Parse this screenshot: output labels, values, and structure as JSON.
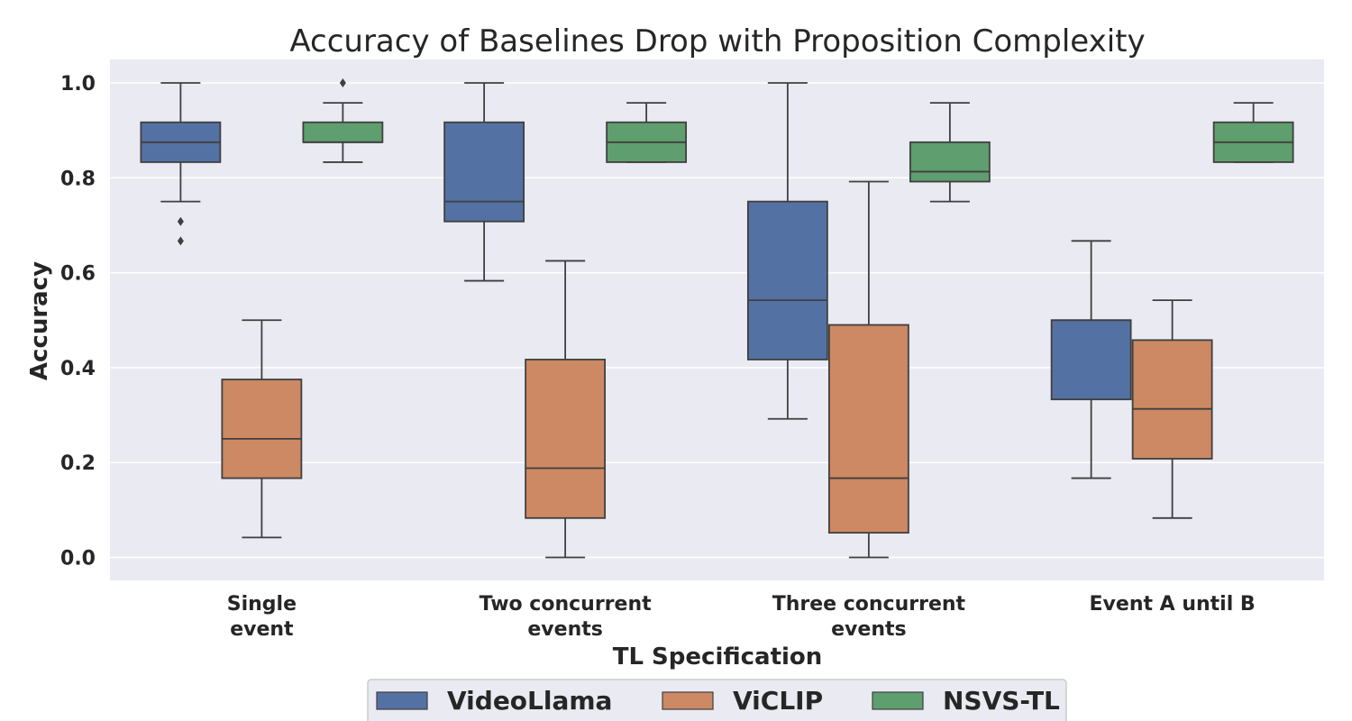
{
  "chart_data": {
    "type": "box",
    "title": "Accuracy of Baselines Drop with Proposition Complexity",
    "xlabel": "TL Specification",
    "ylabel": "Accuracy",
    "ylim": [
      -0.045,
      1.05
    ],
    "yticks": [
      "0.0",
      "0.2",
      "0.4",
      "0.6",
      "0.8",
      "1.0"
    ],
    "grid": true,
    "legend_position": "bottom-center",
    "categories": [
      {
        "lines": [
          "Single",
          "event"
        ]
      },
      {
        "lines": [
          "Two concurrent",
          "events"
        ]
      },
      {
        "lines": [
          "Three concurrent",
          "events"
        ]
      },
      {
        "lines": [
          "Event A until B"
        ]
      }
    ],
    "series": [
      {
        "name": "VideoLlama",
        "color": "#5471a4",
        "boxes": [
          {
            "whisker_low": 0.75,
            "q1": 0.833,
            "median": 0.875,
            "q3": 0.917,
            "whisker_high": 1.0,
            "outliers": [
              0.708,
              0.667
            ]
          },
          {
            "whisker_low": 0.583,
            "q1": 0.708,
            "median": 0.75,
            "q3": 0.917,
            "whisker_high": 1.0,
            "outliers": []
          },
          {
            "whisker_low": 0.292,
            "q1": 0.417,
            "median": 0.542,
            "q3": 0.75,
            "whisker_high": 1.0,
            "outliers": []
          },
          {
            "whisker_low": 0.167,
            "q1": 0.333,
            "median": 0.5,
            "q3": 0.5,
            "whisker_high": 0.667,
            "outliers": []
          }
        ]
      },
      {
        "name": "ViCLIP",
        "color": "#cc8963",
        "boxes": [
          {
            "whisker_low": 0.042,
            "q1": 0.167,
            "median": 0.25,
            "q3": 0.375,
            "whisker_high": 0.5,
            "outliers": []
          },
          {
            "whisker_low": 0.0,
            "q1": 0.083,
            "median": 0.188,
            "q3": 0.417,
            "whisker_high": 0.625,
            "outliers": []
          },
          {
            "whisker_low": 0.0,
            "q1": 0.052,
            "median": 0.167,
            "q3": 0.49,
            "whisker_high": 0.792,
            "outliers": []
          },
          {
            "whisker_low": 0.083,
            "q1": 0.208,
            "median": 0.313,
            "q3": 0.458,
            "whisker_high": 0.542,
            "outliers": []
          }
        ]
      },
      {
        "name": "NSVS-TL",
        "color": "#5f9e6e",
        "boxes": [
          {
            "whisker_low": 0.833,
            "q1": 0.875,
            "median": 0.875,
            "q3": 0.917,
            "whisker_high": 0.958,
            "outliers": [
              1.0
            ]
          },
          {
            "whisker_low": 0.833,
            "q1": 0.833,
            "median": 0.875,
            "q3": 0.917,
            "whisker_high": 0.958,
            "outliers": []
          },
          {
            "whisker_low": 0.75,
            "q1": 0.792,
            "median": 0.813,
            "q3": 0.875,
            "whisker_high": 0.958,
            "outliers": []
          },
          {
            "whisker_low": 0.833,
            "q1": 0.833,
            "median": 0.875,
            "q3": 0.917,
            "whisker_high": 0.958,
            "outliers": []
          }
        ]
      }
    ]
  }
}
